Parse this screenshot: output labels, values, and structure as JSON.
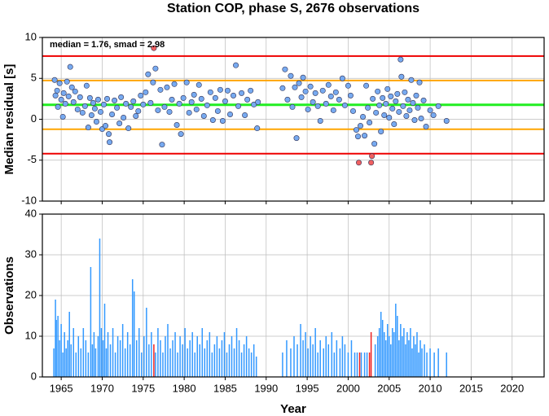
{
  "chart_data": [
    {
      "type": "scatter",
      "title": "Station COP, phase S, 2676 observations",
      "annotation": "median = 1.76, smad = 2.98",
      "ylabel": "Median residual [s]",
      "x": [
        1964.2,
        1964.3,
        1964.5,
        1964.6,
        1964.8,
        1965.0,
        1965.2,
        1965.3,
        1965.5,
        1965.7,
        1965.9,
        1966.1,
        1966.3,
        1966.5,
        1966.7,
        1967.0,
        1967.3,
        1967.6,
        1967.9,
        1968.1,
        1968.3,
        1968.5,
        1968.7,
        1968.9,
        1969.1,
        1969.3,
        1969.5,
        1969.8,
        1970.0,
        1970.2,
        1970.4,
        1970.6,
        1970.8,
        1970.9,
        1971.2,
        1971.5,
        1971.8,
        1972.1,
        1972.3,
        1972.6,
        1972.9,
        1973.2,
        1973.5,
        1973.8,
        1974.1,
        1974.4,
        1974.7,
        1975.0,
        1975.3,
        1975.6,
        1975.9,
        1976.2,
        1976.3,
        1976.5,
        1976.8,
        1977.1,
        1977.3,
        1977.6,
        1977.9,
        1978.2,
        1978.5,
        1978.8,
        1979.1,
        1979.4,
        1979.6,
        1979.9,
        1980.3,
        1980.6,
        1980.9,
        1981.2,
        1981.5,
        1981.8,
        1982.1,
        1982.4,
        1982.8,
        1983.2,
        1983.5,
        1983.8,
        1984.1,
        1984.4,
        1984.7,
        1985.0,
        1985.3,
        1985.6,
        1986.0,
        1986.3,
        1986.6,
        1987.0,
        1987.4,
        1987.7,
        1988.1,
        1988.5,
        1988.9,
        1989.0,
        1992.0,
        1992.3,
        1992.6,
        1993.0,
        1993.2,
        1993.5,
        1993.7,
        1994.0,
        1994.3,
        1994.5,
        1994.8,
        1995.1,
        1995.4,
        1995.7,
        1996.0,
        1996.3,
        1996.6,
        1996.9,
        1997.3,
        1997.6,
        1997.9,
        1998.2,
        1998.5,
        1998.9,
        1999.3,
        1999.6,
        2000.0,
        2000.3,
        2000.6,
        2001.0,
        2001.2,
        2001.3,
        2001.5,
        2001.8,
        2002.0,
        2002.2,
        2002.4,
        2002.6,
        2002.8,
        2002.9,
        2003.0,
        2003.2,
        2003.4,
        2003.6,
        2003.8,
        2004.0,
        2004.2,
        2004.4,
        2004.6,
        2004.8,
        2005.0,
        2005.2,
        2005.4,
        2005.6,
        2005.8,
        2006.0,
        2006.2,
        2006.4,
        2006.5,
        2006.7,
        2006.9,
        2007.1,
        2007.3,
        2007.5,
        2007.7,
        2007.9,
        2008.1,
        2008.3,
        2008.5,
        2008.7,
        2008.9,
        2009.2,
        2009.5,
        2010.0,
        2010.4,
        2011.0,
        2012.0
      ],
      "values": [
        4.8,
        2.9,
        3.5,
        1.5,
        4.4,
        2.4,
        0.3,
        3.2,
        1.9,
        4.6,
        2.8,
        6.4,
        3.9,
        2.1,
        3.4,
        1.2,
        2.7,
        0.8,
        1.6,
        4.1,
        -1.0,
        2.6,
        0.5,
        2.0,
        1.3,
        -0.3,
        2.4,
        0.9,
        -1.2,
        1.8,
        -0.8,
        2.5,
        -1.8,
        -2.8,
        0.6,
        2.3,
        1.4,
        -0.5,
        2.7,
        0.2,
        1.9,
        -1.1,
        1.5,
        2.2,
        0.4,
        1.0,
        2.9,
        1.8,
        3.3,
        5.5,
        2.0,
        4.5,
        8.7,
        6.2,
        1.1,
        3.6,
        -3.1,
        1.5,
        3.9,
        0.9,
        2.4,
        4.3,
        -0.7,
        1.9,
        -1.8,
        2.6,
        4.5,
        0.8,
        2.1,
        3.0,
        1.2,
        4.2,
        2.5,
        0.4,
        1.7,
        3.3,
        -0.1,
        2.6,
        1.0,
        3.6,
        -0.2,
        2.2,
        3.5,
        0.6,
        2.9,
        6.6,
        1.6,
        3.2,
        0.5,
        2.4,
        3.5,
        1.8,
        -1.1,
        2.1,
        3.8,
        6.1,
        2.4,
        5.3,
        1.5,
        3.9,
        -2.3,
        4.4,
        2.7,
        5.1,
        3.4,
        1.2,
        4.0,
        2.1,
        3.2,
        1.6,
        -0.2,
        3.5,
        1.9,
        4.2,
        2.8,
        1.1,
        3.3,
        2.4,
        5.0,
        1.7,
        4.1,
        2.9,
        1.0,
        -1.3,
        -2.1,
        -5.3,
        -0.8,
        0.3,
        -2.0,
        4.1,
        1.4,
        -0.4,
        -5.3,
        -4.5,
        2.5,
        -3.0,
        0.8,
        3.4,
        1.7,
        -1.5,
        2.6,
        0.5,
        1.9,
        3.7,
        0.2,
        2.8,
        1.3,
        -0.6,
        2.2,
        3.1,
        0.9,
        7.3,
        5.2,
        1.6,
        3.3,
        0.4,
        2.4,
        1.1,
        4.8,
        2.0,
        -0.1,
        2.9,
        1.4,
        4.5,
        0.1,
        2.3,
        -0.9,
        1.1,
        0.5,
        1.6,
        -0.2
      ],
      "color": "#77aaf0",
      "outlier_color": "#f06060",
      "lines": [
        {
          "value": 7.72,
          "color": "#ee0000"
        },
        {
          "value": 4.74,
          "color": "#ffa500"
        },
        {
          "value": 1.76,
          "color": "#22ee22"
        },
        {
          "value": -1.22,
          "color": "#ffa500"
        },
        {
          "value": -4.2,
          "color": "#ee0000"
        }
      ],
      "xlim": [
        1962.7,
        2023.9
      ],
      "xticks": [
        1965,
        1970,
        1975,
        1980,
        1985,
        1990,
        1995,
        2000,
        2005,
        2010,
        2015,
        2020
      ],
      "ylim": [
        -10,
        10
      ],
      "yticks": [
        -10,
        -5,
        0,
        5,
        10
      ],
      "grid": true
    },
    {
      "type": "bar",
      "xlabel": "Year",
      "ylabel": "Observations",
      "series": [
        {
          "color": "#3399ff",
          "x": [
            1964.1,
            1964.3,
            1964.4,
            1964.6,
            1964.8,
            1965.0,
            1965.2,
            1965.4,
            1965.6,
            1965.8,
            1966.0,
            1966.2,
            1966.5,
            1966.8,
            1967.1,
            1967.4,
            1967.7,
            1968.0,
            1968.3,
            1968.6,
            1968.8,
            1969.0,
            1969.2,
            1969.5,
            1969.7,
            1969.9,
            1970.1,
            1970.3,
            1970.5,
            1970.7,
            1971.0,
            1971.3,
            1971.6,
            1971.9,
            1972.2,
            1972.5,
            1972.8,
            1973.1,
            1973.4,
            1973.7,
            1973.9,
            1974.2,
            1974.5,
            1974.8,
            1975.1,
            1975.4,
            1975.7,
            1976.0,
            1976.5,
            1976.8,
            1977.1,
            1977.4,
            1977.7,
            1978.0,
            1978.3,
            1978.6,
            1978.9,
            1979.2,
            1979.5,
            1979.8,
            1980.1,
            1980.4,
            1980.7,
            1981.0,
            1981.3,
            1981.6,
            1981.9,
            1982.2,
            1982.5,
            1982.8,
            1983.1,
            1983.4,
            1983.7,
            1984.0,
            1984.3,
            1984.6,
            1984.9,
            1985.2,
            1985.5,
            1985.8,
            1986.1,
            1986.4,
            1986.7,
            1987.0,
            1987.3,
            1987.6,
            1987.9,
            1988.2,
            1988.5,
            1988.8,
            1992.0,
            1992.5,
            1993.0,
            1993.4,
            1993.8,
            1994.2,
            1994.5,
            1994.8,
            1995.1,
            1995.4,
            1995.7,
            1996.0,
            1996.3,
            1996.6,
            1997.0,
            1997.3,
            1997.6,
            1998.0,
            1998.3,
            1998.6,
            1999.0,
            1999.3,
            1999.6,
            2000.0,
            2000.4,
            2000.8,
            2001.1,
            2001.6,
            2002.0,
            2002.3,
            2003.3,
            2003.6,
            2003.8,
            2004.0,
            2004.2,
            2004.4,
            2004.6,
            2004.8,
            2005.0,
            2005.2,
            2005.4,
            2005.6,
            2005.8,
            2006.0,
            2006.2,
            2006.4,
            2006.6,
            2006.8,
            2007.0,
            2007.2,
            2007.4,
            2007.6,
            2007.8,
            2008.0,
            2008.2,
            2008.4,
            2008.6,
            2008.8,
            2009.0,
            2009.3,
            2009.6,
            2010.0,
            2010.5,
            2011.0,
            2012.0
          ],
          "values": [
            7,
            19,
            14,
            15,
            9,
            13,
            6,
            11,
            7,
            9,
            16,
            8,
            12,
            6,
            10,
            7,
            12,
            9,
            6,
            27,
            8,
            11,
            7,
            10,
            34,
            12,
            9,
            18,
            7,
            11,
            8,
            12,
            6,
            10,
            9,
            13,
            7,
            11,
            8,
            24,
            21,
            9,
            12,
            6,
            10,
            17,
            8,
            11,
            6,
            12,
            9,
            6,
            10,
            13,
            7,
            9,
            11,
            6,
            10,
            8,
            12,
            7,
            9,
            11,
            6,
            10,
            8,
            12,
            7,
            9,
            11,
            6,
            8,
            10,
            7,
            9,
            11,
            6,
            8,
            10,
            7,
            12,
            9,
            6,
            8,
            10,
            7,
            6,
            8,
            5,
            6,
            9,
            7,
            10,
            8,
            13,
            9,
            11,
            7,
            10,
            8,
            12,
            6,
            9,
            7,
            10,
            8,
            11,
            6,
            9,
            7,
            10,
            8,
            6,
            9,
            6,
            6,
            6,
            6,
            6,
            8,
            10,
            12,
            16,
            14,
            11,
            9,
            13,
            10,
            8,
            12,
            11,
            18,
            15,
            9,
            13,
            10,
            12,
            8,
            11,
            9,
            12,
            7,
            10,
            8,
            11,
            6,
            9,
            7,
            8,
            6,
            7,
            6,
            7,
            6
          ]
        },
        {
          "color": "#ee2222",
          "x": [
            1976.3,
            2001.4,
            2002.6,
            2002.8
          ],
          "values": [
            8,
            6,
            6,
            11
          ]
        }
      ],
      "xlim": [
        1962.7,
        2023.9
      ],
      "xticks": [
        1965,
        1970,
        1975,
        1980,
        1985,
        1990,
        1995,
        2000,
        2005,
        2010,
        2015,
        2020
      ],
      "ylim": [
        0,
        40
      ],
      "yticks": [
        0,
        10,
        20,
        30,
        40
      ],
      "grid": true
    }
  ]
}
